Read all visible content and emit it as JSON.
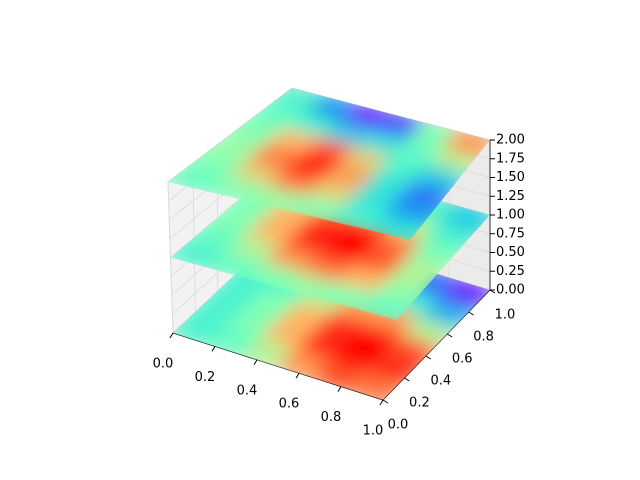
{
  "chart_data": {
    "type": "surface3d",
    "colormap": "rainbow",
    "clim": [
      0,
      1
    ],
    "xlim": [
      0,
      1
    ],
    "ylim": [
      0,
      1
    ],
    "zlim": [
      0,
      2
    ],
    "xticks": [
      {
        "value": 0,
        "label": "0.0"
      },
      {
        "value": 0.2,
        "label": "0.2"
      },
      {
        "value": 0.4,
        "label": "0.4"
      },
      {
        "value": 0.6,
        "label": "0.6"
      },
      {
        "value": 0.8,
        "label": "0.8"
      },
      {
        "value": 1,
        "label": "1.0"
      }
    ],
    "yticks": [
      {
        "value": 0,
        "label": "0.0"
      },
      {
        "value": 0.2,
        "label": "0.2"
      },
      {
        "value": 0.4,
        "label": "0.4"
      },
      {
        "value": 0.6,
        "label": "0.6"
      },
      {
        "value": 0.8,
        "label": "0.8"
      },
      {
        "value": 1,
        "label": "1.0"
      }
    ],
    "zticks": [
      {
        "value": 0,
        "label": "0.00"
      },
      {
        "value": 0.25,
        "label": "0.25"
      },
      {
        "value": 0.5,
        "label": "0.50"
      },
      {
        "value": 0.75,
        "label": "0.75"
      },
      {
        "value": 1,
        "label": "1.00"
      },
      {
        "value": 1.25,
        "label": "1.25"
      },
      {
        "value": 1.5,
        "label": "1.50"
      },
      {
        "value": 1.75,
        "label": "1.75"
      },
      {
        "value": 2,
        "label": "2.00"
      }
    ],
    "grid": true,
    "layers": [
      {
        "z": 0,
        "values": [
          [
            0.4,
            0.45,
            0.6,
            0.8,
            0.9,
            0.85
          ],
          [
            0.4,
            0.5,
            0.75,
            0.95,
            1,
            0.95
          ],
          [
            0.4,
            0.5,
            0.75,
            0.95,
            1,
            0.9
          ],
          [
            0.4,
            0.45,
            0.6,
            0.8,
            0.8,
            0.6
          ],
          [
            0.4,
            0.4,
            0.45,
            0.5,
            0.4,
            0.25
          ],
          [
            0.4,
            0.4,
            0.4,
            0.35,
            0.15,
            0.05
          ]
        ]
      },
      {
        "z": 1,
        "values": [
          [
            0.4,
            0.45,
            0.5,
            0.55,
            0.5,
            0.45
          ],
          [
            0.45,
            0.6,
            0.8,
            0.85,
            0.75,
            0.55
          ],
          [
            0.5,
            0.75,
            0.95,
            1,
            0.9,
            0.6
          ],
          [
            0.5,
            0.75,
            0.95,
            1,
            0.85,
            0.5
          ],
          [
            0.45,
            0.6,
            0.8,
            0.8,
            0.6,
            0.4
          ],
          [
            0.4,
            0.45,
            0.5,
            0.5,
            0.4,
            0.3
          ]
        ]
      },
      {
        "z": 2,
        "values": [
          [
            0.45,
            0.5,
            0.55,
            0.5,
            0.4,
            0.35
          ],
          [
            0.5,
            0.7,
            0.85,
            0.7,
            0.35,
            0.2
          ],
          [
            0.55,
            0.85,
            1,
            0.8,
            0.35,
            0.15
          ],
          [
            0.5,
            0.75,
            0.9,
            0.7,
            0.4,
            0.3
          ],
          [
            0.45,
            0.4,
            0.3,
            0.35,
            0.45,
            0.6
          ],
          [
            0.4,
            0.2,
            0.05,
            0.1,
            0.5,
            0.8
          ]
        ]
      }
    ]
  }
}
